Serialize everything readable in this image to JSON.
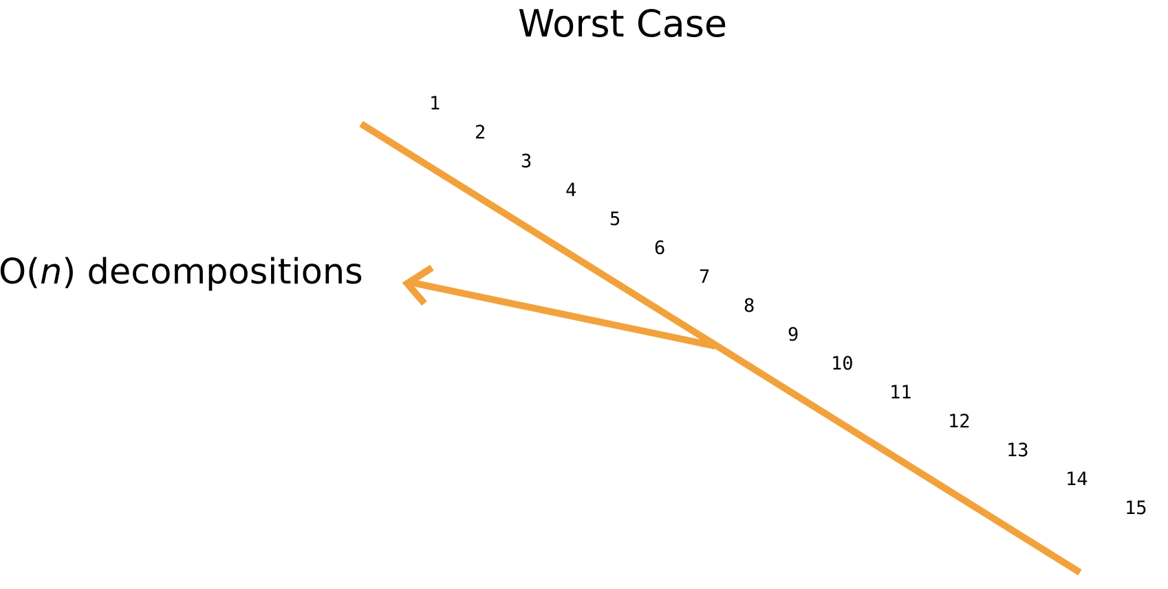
{
  "title": "Worst Case",
  "label": {
    "prefix": "O(",
    "variable": "n",
    "suffix": ") decompositions"
  },
  "sequence": [
    "1",
    "2",
    "3",
    "4",
    "5",
    "6",
    "7",
    "8",
    "9",
    "10",
    "11",
    "12",
    "13",
    "14",
    "15"
  ],
  "colors": {
    "accent": "#F2A23C",
    "text": "#000000"
  },
  "icons": {
    "pointer": "arrow-icon"
  }
}
